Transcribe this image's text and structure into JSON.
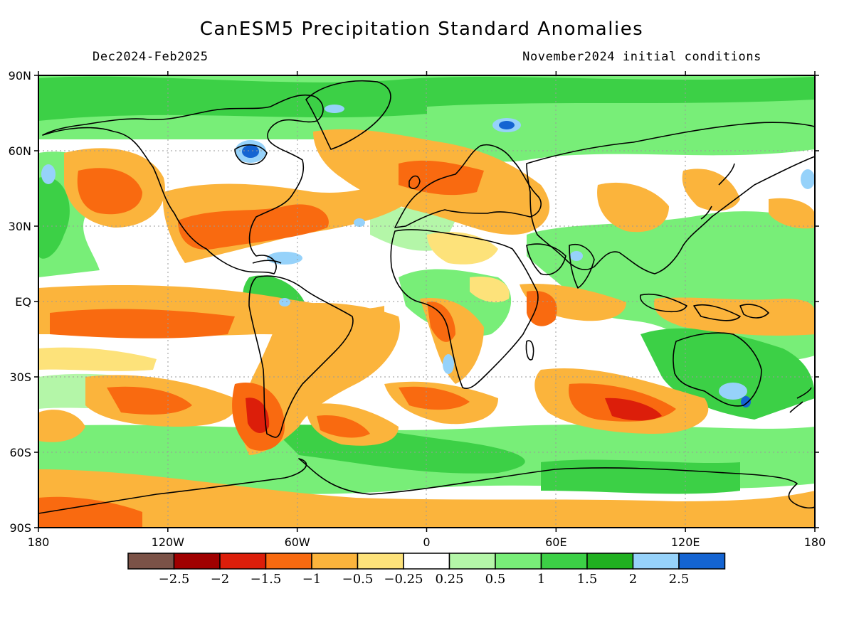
{
  "header": {
    "title": "CanESM5 Precipitation Standard Anomalies",
    "period": "Dec2024-Feb2025",
    "init": "November2024 initial conditions"
  },
  "axes": {
    "lat_labels": [
      "90N",
      "60N",
      "30N",
      "EQ",
      "30S",
      "60S",
      "90S"
    ],
    "lat_values": [
      90,
      60,
      30,
      0,
      -30,
      -60,
      -90
    ],
    "lon_labels": [
      "180",
      "120W",
      "60W",
      "0",
      "60E",
      "120E",
      "180"
    ],
    "lon_values": [
      -180,
      -120,
      -60,
      0,
      60,
      120,
      180
    ]
  },
  "legend": {
    "colors": [
      "#7b5247",
      "#a00000",
      "#dc1e0a",
      "#f96a10",
      "#fbb43c",
      "#fde27a",
      "#ffffff",
      "#b4f6a8",
      "#78ee78",
      "#3cd046",
      "#20b020",
      "#96d2fa",
      "#1464d2"
    ],
    "labels": [
      "-2.5",
      "-2",
      "-1.5",
      "-1",
      "-0.5",
      "-0.25",
      "0.25",
      "0.5",
      "1",
      "1.5",
      "2",
      "2.5"
    ]
  },
  "colors": {
    "coastline": "#000000",
    "grid": "#9a9a9a"
  }
}
